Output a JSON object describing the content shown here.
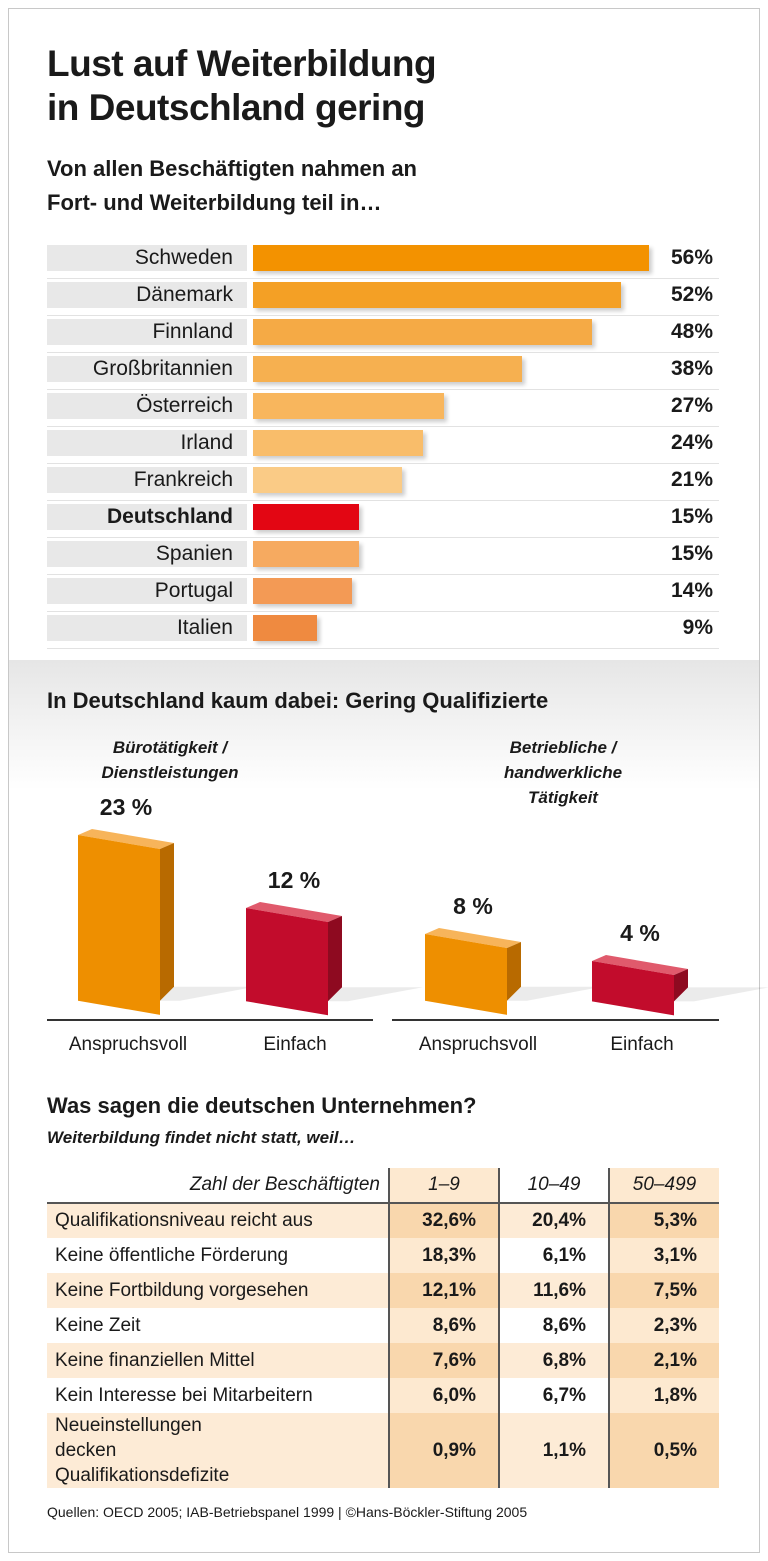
{
  "title_line1": "Lust auf Weiterbildung",
  "title_line2": "in Deutschland gering",
  "subtitle_line1": "Von allen Beschäftigten nahmen an",
  "subtitle_line2": "Fort- und Weiterbildung teil in…",
  "chart_data": [
    {
      "type": "bar",
      "orientation": "horizontal",
      "title": "Von allen Beschäftigten nahmen an Fort- und Weiterbildung teil in…",
      "categories": [
        "Schweden",
        "Dänemark",
        "Finnland",
        "Großbritannien",
        "Österreich",
        "Irland",
        "Frankreich",
        "Deutschland",
        "Spanien",
        "Portugal",
        "Italien"
      ],
      "values": [
        56,
        52,
        48,
        38,
        27,
        24,
        21,
        15,
        15,
        14,
        9
      ],
      "labels": [
        "56%",
        "52%",
        "48%",
        "38%",
        "27%",
        "24%",
        "21%",
        "15%",
        "15%",
        "14%",
        "9%"
      ],
      "highlight": "Deutschland",
      "colors": [
        "#f39200",
        "#f4a025",
        "#f5aa45",
        "#f6b050",
        "#f8b65d",
        "#f9bd6a",
        "#facb86",
        "#e30613",
        "#f6aa60",
        "#f39a55",
        "#ef8a40"
      ],
      "xlim": [
        0,
        56
      ]
    },
    {
      "type": "bar",
      "title": "In Deutschland kaum dabei: Gering Qualifizierte",
      "groups": [
        {
          "name": "Bürotätigkeit / Dienstleistungen",
          "name_lines": [
            "Bürotätigkeit /",
            "Dienstleistungen"
          ],
          "categories": [
            "Anspruchsvoll",
            "Einfach"
          ],
          "values": [
            23,
            12
          ],
          "labels": [
            "23 %",
            "12 %"
          ]
        },
        {
          "name": "Betriebliche / handwerkliche Tätigkeit",
          "name_lines": [
            "Betriebliche /",
            "handwerkliche",
            "Tätigkeit"
          ],
          "categories": [
            "Anspruchsvoll",
            "Einfach"
          ],
          "values": [
            8,
            4
          ],
          "labels": [
            "8 %",
            "4 %"
          ]
        }
      ],
      "colors": {
        "Anspruchsvoll": "#ee8f00",
        "Einfach": "#c20c2c"
      }
    },
    {
      "type": "table",
      "title": "Was sagen die deutschen Unternehmen?",
      "subtitle": "Weiterbildung findet nicht statt, weil…",
      "header": [
        "Zahl der Beschäftigten",
        "1–9",
        "10–49",
        "50–499"
      ],
      "rows": [
        [
          "Qualifikationsniveau reicht aus",
          "32,6%",
          "20,4%",
          "5,3%"
        ],
        [
          "Keine öffentliche Förderung",
          "18,3%",
          "6,1%",
          "3,1%"
        ],
        [
          "Keine Fortbildung vorgesehen",
          "12,1%",
          "11,6%",
          "7,5%"
        ],
        [
          "Keine Zeit",
          "8,6%",
          "8,6%",
          "2,3%"
        ],
        [
          "Keine finanziellen Mittel",
          "7,6%",
          "6,8%",
          "2,1%"
        ],
        [
          "Kein Interesse bei Mitarbeitern",
          "6,0%",
          "6,7%",
          "1,8%"
        ],
        [
          "Neueinstellungen decken Qualifikationsdefizite",
          "0,9%",
          "1,1%",
          "0,5%"
        ]
      ]
    }
  ],
  "source": "Quellen: OECD 2005; IAB-Betriebspanel 1999 | ©Hans-Böckler-Stiftung 2005"
}
